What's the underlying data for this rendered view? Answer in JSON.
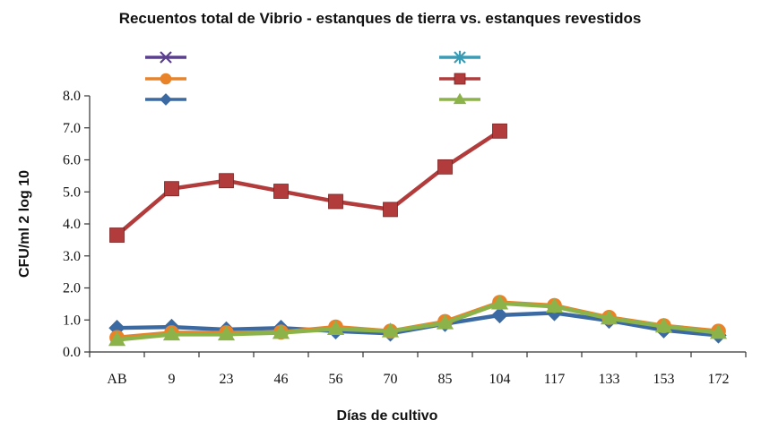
{
  "chart_data": {
    "type": "line",
    "title": "Recuentos total de Vibrio - estanques de tierra vs. estanques revestidos",
    "xlabel": "Días de cultivo",
    "ylabel": "CFU/ml 2 log 10",
    "ylim": [
      0,
      8
    ],
    "yticks": [
      "0.0",
      "1.0",
      "2.0",
      "3.0",
      "4.0",
      "5.0",
      "6.0",
      "7.0",
      "8.0"
    ],
    "categories": [
      "AB",
      "9",
      "23",
      "46",
      "56",
      "70",
      "85",
      "104",
      "117",
      "133",
      "153",
      "172"
    ],
    "grid": false,
    "legend_position": "top",
    "series": [
      {
        "color": "#5a3f8f",
        "marker": "x",
        "values": [
          null,
          null,
          null,
          null,
          null,
          null,
          null,
          null,
          null,
          null,
          null,
          null
        ]
      },
      {
        "color": "#e8832a",
        "marker": "circle",
        "values": [
          0.45,
          0.6,
          0.6,
          0.62,
          0.78,
          0.65,
          0.95,
          1.55,
          1.45,
          1.08,
          0.82,
          0.65
        ]
      },
      {
        "color": "#3b6aa3",
        "marker": "diamond",
        "values": [
          0.75,
          0.78,
          0.7,
          0.75,
          0.65,
          0.58,
          0.88,
          1.15,
          1.22,
          0.98,
          0.68,
          0.52
        ]
      },
      {
        "color": "#3a9bb5",
        "marker": "star",
        "values": [
          null,
          null,
          null,
          null,
          null,
          null,
          null,
          null,
          null,
          null,
          null,
          null
        ]
      },
      {
        "color": "#b23b3b",
        "marker": "square",
        "values": [
          3.65,
          5.1,
          5.35,
          5.02,
          4.7,
          4.45,
          5.78,
          6.9,
          null,
          null,
          null,
          null
        ]
      },
      {
        "color": "#8cb349",
        "marker": "triangle",
        "values": [
          0.38,
          0.55,
          0.55,
          0.6,
          0.72,
          0.65,
          0.9,
          1.52,
          1.42,
          1.05,
          0.8,
          0.6
        ]
      }
    ]
  }
}
